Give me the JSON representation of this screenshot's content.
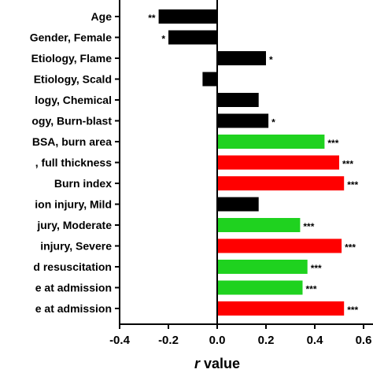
{
  "chart_data": {
    "type": "bar",
    "orientation": "horizontal",
    "xlabel": "r value",
    "xlabel_italic_part": "r",
    "xlim": [
      -0.4,
      0.6
    ],
    "xticks": [
      "-0.4",
      "-0.2",
      "0.0",
      "0.2",
      "0.4",
      "0.6"
    ],
    "xtick_values": [
      -0.4,
      -0.2,
      0.0,
      0.2,
      0.4,
      0.6
    ],
    "grid": false,
    "colors": {
      "black": "#000000",
      "green": "#1fd21f",
      "red": "#ff0000"
    },
    "bars": [
      {
        "label": "Age",
        "value": -0.24,
        "color": "black",
        "sig": "**"
      },
      {
        "label": "Gender, Female",
        "value": -0.2,
        "color": "black",
        "sig": "*"
      },
      {
        "label": "Etiology, Flame",
        "value": 0.2,
        "color": "black",
        "sig": "*"
      },
      {
        "label": "Etiology, Scald",
        "value": -0.06,
        "color": "black",
        "sig": ""
      },
      {
        "label": "logy, Chemical",
        "value": 0.17,
        "color": "black",
        "sig": ""
      },
      {
        "label": "ogy, Burn-blast",
        "value": 0.21,
        "color": "black",
        "sig": "*"
      },
      {
        "label": "BSA, burn area",
        "value": 0.44,
        "color": "green",
        "sig": "***"
      },
      {
        "label": ", full thickness",
        "value": 0.5,
        "color": "red",
        "sig": "***"
      },
      {
        "label": "Burn index",
        "value": 0.52,
        "color": "red",
        "sig": "***"
      },
      {
        "label": "ion injury, Mild",
        "value": 0.17,
        "color": "black",
        "sig": ""
      },
      {
        "label": "jury, Moderate",
        "value": 0.34,
        "color": "green",
        "sig": "***"
      },
      {
        "label": "injury, Severe",
        "value": 0.51,
        "color": "red",
        "sig": "***"
      },
      {
        "label": "d resuscitation",
        "value": 0.37,
        "color": "green",
        "sig": "***"
      },
      {
        "label": "e at admission",
        "value": 0.35,
        "color": "green",
        "sig": "***"
      },
      {
        "label": "e at admission",
        "value": 0.52,
        "color": "red",
        "sig": "***"
      }
    ]
  }
}
